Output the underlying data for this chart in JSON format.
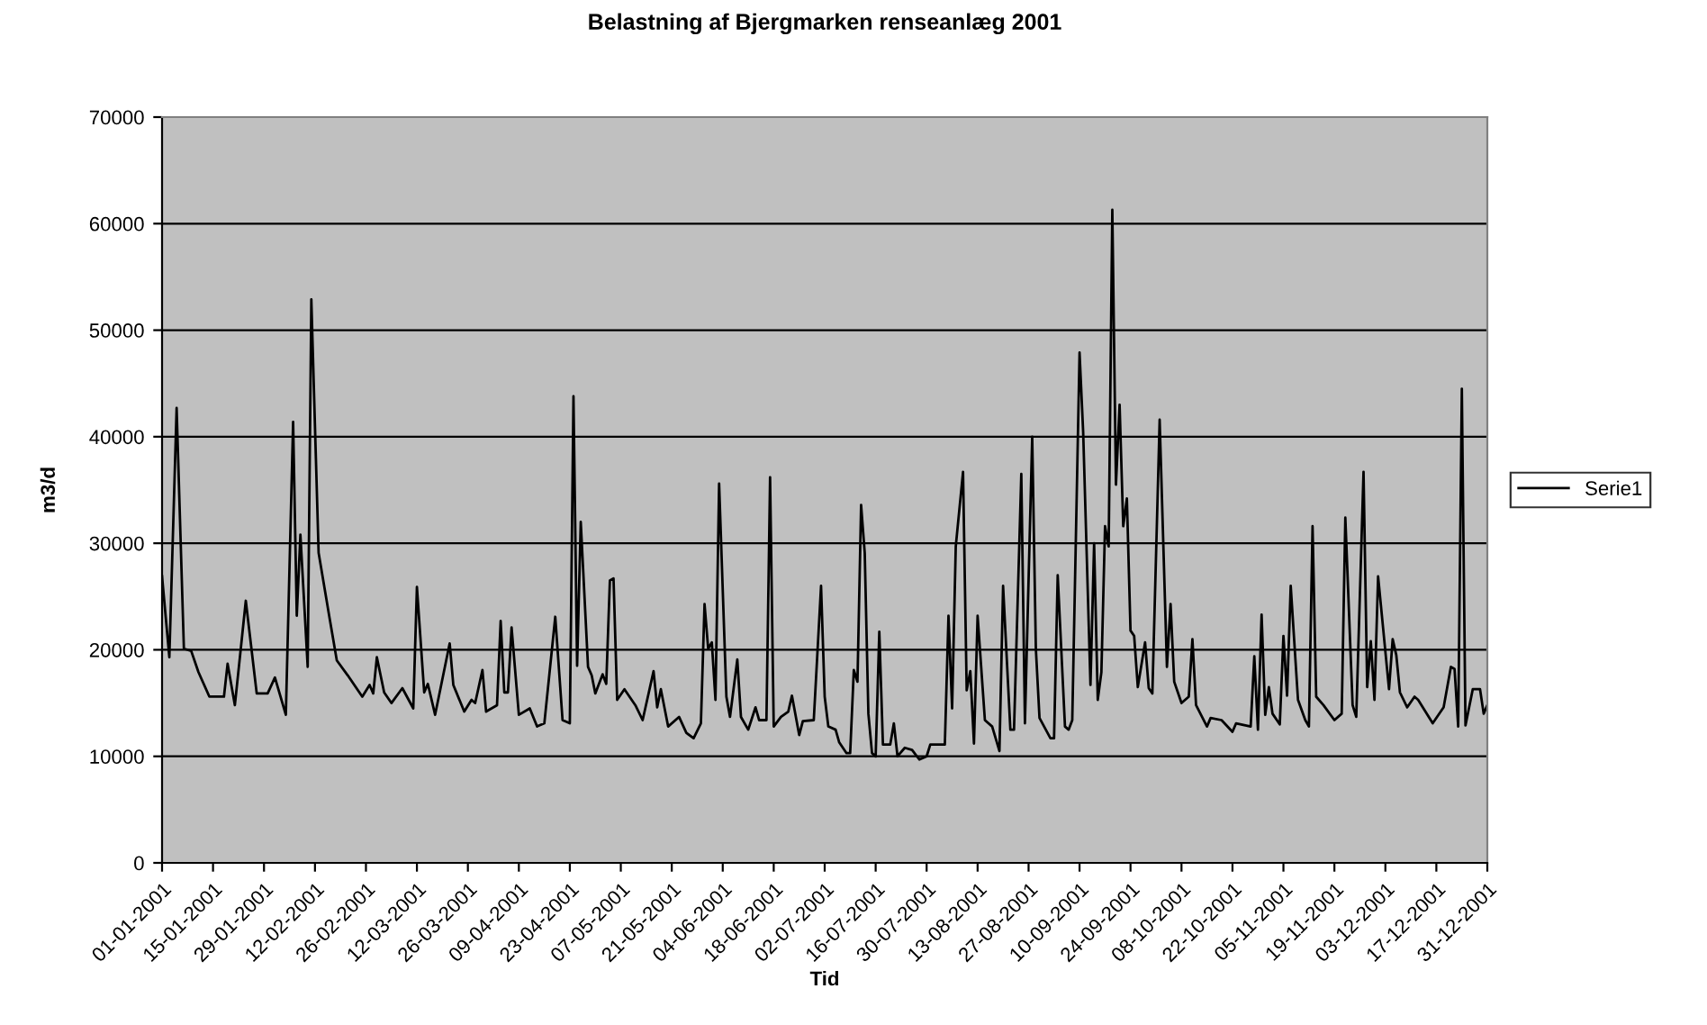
{
  "chart_data": {
    "type": "line",
    "title": "Belastning af Bjergmarken renseanlæg 2001",
    "xlabel": "Tid",
    "ylabel": "m3/d",
    "x": [
      "2001-01-01",
      "2001-01-03",
      "2001-01-05",
      "2001-01-07",
      "2001-01-09",
      "2001-01-11",
      "2001-01-14",
      "2001-01-18",
      "2001-01-19",
      "2001-01-21",
      "2001-01-24",
      "2001-01-27",
      "2001-01-30",
      "2001-02-01",
      "2001-02-04",
      "2001-02-06",
      "2001-02-07",
      "2001-02-08",
      "2001-02-10",
      "2001-02-11",
      "2001-02-13",
      "2001-02-16",
      "2001-02-18",
      "2001-02-21",
      "2001-02-25",
      "2001-02-27",
      "2001-02-28",
      "2001-03-01",
      "2001-03-03",
      "2001-03-05",
      "2001-03-08",
      "2001-03-11",
      "2001-03-12",
      "2001-03-14",
      "2001-03-15",
      "2001-03-17",
      "2001-03-21",
      "2001-03-22",
      "2001-03-25",
      "2001-03-27",
      "2001-03-28",
      "2001-03-30",
      "2001-03-31",
      "2001-04-03",
      "2001-04-04",
      "2001-04-05",
      "2001-04-06",
      "2001-04-07",
      "2001-04-09",
      "2001-04-12",
      "2001-04-14",
      "2001-04-16",
      "2001-04-19",
      "2001-04-21",
      "2001-04-23",
      "2001-04-24",
      "2001-04-25",
      "2001-04-26",
      "2001-04-28",
      "2001-04-29",
      "2001-04-30",
      "2001-05-02",
      "2001-05-03",
      "2001-05-04",
      "2001-05-05",
      "2001-05-06",
      "2001-05-08",
      "2001-05-11",
      "2001-05-13",
      "2001-05-16",
      "2001-05-17",
      "2001-05-18",
      "2001-05-20",
      "2001-05-23",
      "2001-05-25",
      "2001-05-27",
      "2001-05-29",
      "2001-05-30",
      "2001-05-31",
      "2001-06-01",
      "2001-06-02",
      "2001-06-03",
      "2001-06-05",
      "2001-06-06",
      "2001-06-08",
      "2001-06-09",
      "2001-06-11",
      "2001-06-13",
      "2001-06-14",
      "2001-06-16",
      "2001-06-17",
      "2001-06-18",
      "2001-06-20",
      "2001-06-22",
      "2001-06-23",
      "2001-06-25",
      "2001-06-26",
      "2001-06-29",
      "2001-07-01",
      "2001-07-02",
      "2001-07-03",
      "2001-07-05",
      "2001-07-06",
      "2001-07-08",
      "2001-07-09",
      "2001-07-10",
      "2001-07-11",
      "2001-07-12",
      "2001-07-13",
      "2001-07-14",
      "2001-07-15",
      "2001-07-16",
      "2001-07-17",
      "2001-07-18",
      "2001-07-20",
      "2001-07-21",
      "2001-07-22",
      "2001-07-24",
      "2001-07-26",
      "2001-07-28",
      "2001-07-30",
      "2001-07-31",
      "2001-08-03",
      "2001-08-04",
      "2001-08-05",
      "2001-08-06",
      "2001-08-07",
      "2001-08-09",
      "2001-08-10",
      "2001-08-11",
      "2001-08-12",
      "2001-08-13",
      "2001-08-15",
      "2001-08-17",
      "2001-08-19",
      "2001-08-20",
      "2001-08-22",
      "2001-08-23",
      "2001-08-25",
      "2001-08-26",
      "2001-08-28",
      "2001-08-29",
      "2001-08-30",
      "2001-09-02",
      "2001-09-03",
      "2001-09-04",
      "2001-09-06",
      "2001-09-07",
      "2001-09-08",
      "2001-09-10",
      "2001-09-11",
      "2001-09-13",
      "2001-09-14",
      "2001-09-15",
      "2001-09-16",
      "2001-09-17",
      "2001-09-18",
      "2001-09-19",
      "2001-09-20",
      "2001-09-21",
      "2001-09-22",
      "2001-09-23",
      "2001-09-24",
      "2001-09-25",
      "2001-09-26",
      "2001-09-28",
      "2001-09-29",
      "2001-09-30",
      "2001-10-02",
      "2001-10-04",
      "2001-10-05",
      "2001-10-06",
      "2001-10-08",
      "2001-10-10",
      "2001-10-11",
      "2001-10-12",
      "2001-10-15",
      "2001-10-16",
      "2001-10-19",
      "2001-10-22",
      "2001-10-23",
      "2001-10-27",
      "2001-10-28",
      "2001-10-29",
      "2001-10-30",
      "2001-10-31",
      "2001-11-01",
      "2001-11-02",
      "2001-11-04",
      "2001-11-05",
      "2001-11-06",
      "2001-11-07",
      "2001-11-09",
      "2001-11-11",
      "2001-11-12",
      "2001-11-13",
      "2001-11-14",
      "2001-11-16",
      "2001-11-19",
      "2001-11-21",
      "2001-11-22",
      "2001-11-24",
      "2001-11-25",
      "2001-11-27",
      "2001-11-28",
      "2001-11-29",
      "2001-11-30",
      "2001-12-01",
      "2001-12-04",
      "2001-12-05",
      "2001-12-06",
      "2001-12-07",
      "2001-12-09",
      "2001-12-11",
      "2001-12-12",
      "2001-12-14",
      "2001-12-16",
      "2001-12-19",
      "2001-12-21",
      "2001-12-22",
      "2001-12-23",
      "2001-12-24",
      "2001-12-25",
      "2001-12-27",
      "2001-12-29",
      "2001-12-30",
      "2001-12-31"
    ],
    "series": [
      {
        "name": "Serie1",
        "color": "#000000",
        "values": [
          26900,
          19300,
          42700,
          20100,
          19900,
          17900,
          15600,
          15600,
          18700,
          14800,
          24600,
          15900,
          15900,
          17400,
          13900,
          41400,
          23200,
          30800,
          18400,
          52900,
          29100,
          23000,
          19000,
          17600,
          15600,
          16700,
          15900,
          19300,
          16000,
          15000,
          16400,
          14500,
          25900,
          16000,
          16800,
          13900,
          20600,
          16700,
          14200,
          15300,
          15000,
          18100,
          14200,
          14800,
          22700,
          16000,
          16000,
          22100,
          13900,
          14500,
          12800,
          13100,
          23100,
          13400,
          13100,
          43800,
          18500,
          32000,
          18400,
          17600,
          15900,
          17700,
          16800,
          26500,
          26700,
          15300,
          16300,
          14800,
          13400,
          18000,
          14600,
          16300,
          12800,
          13700,
          12200,
          11700,
          13100,
          24300,
          20100,
          20700,
          15300,
          35600,
          15600,
          13700,
          19100,
          13700,
          12500,
          14600,
          13400,
          13400,
          36200,
          12800,
          13700,
          14200,
          15700,
          12000,
          13300,
          13400,
          26000,
          15600,
          12800,
          12500,
          11300,
          10300,
          10300,
          18100,
          17000,
          33600,
          29100,
          14000,
          10300,
          10000,
          21700,
          11100,
          11100,
          13100,
          10000,
          10800,
          10600,
          9700,
          10000,
          11100,
          11100,
          11100,
          23200,
          14500,
          29700,
          36700,
          16200,
          18000,
          11200,
          23200,
          13400,
          12800,
          10500,
          26000,
          12500,
          12500,
          36500,
          13100,
          40000,
          20100,
          13600,
          11700,
          11700,
          27000,
          12800,
          12500,
          13400,
          47900,
          40400,
          16700,
          30000,
          15300,
          17900,
          31600,
          29700,
          61300,
          35500,
          43000,
          31600,
          34200,
          21800,
          21300,
          16500,
          20700,
          16400,
          15900,
          41600,
          18400,
          24300,
          17000,
          15000,
          15600,
          21000,
          14800,
          12800,
          13600,
          13400,
          12300,
          13100,
          12800,
          19400,
          12500,
          23300,
          13900,
          16500,
          14000,
          13000,
          21300,
          15700,
          26000,
          15300,
          13400,
          12800,
          31600,
          15600,
          14800,
          13400,
          14000,
          32400,
          14800,
          13700,
          36700,
          16500,
          20800,
          15300,
          26900,
          16300,
          21000,
          19500,
          16000,
          14600,
          15600,
          15300,
          14200,
          13100,
          14600,
          18400,
          18200,
          12800,
          44500,
          12900,
          16300,
          16300,
          14000,
          14800
        ]
      }
    ],
    "xlim": [
      "2001-01-01",
      "2001-12-31"
    ],
    "xticks": [
      {
        "value": "2001-01-01",
        "label": "01-01-2001"
      },
      {
        "value": "2001-01-15",
        "label": "15-01-2001"
      },
      {
        "value": "2001-01-29",
        "label": "29-01-2001"
      },
      {
        "value": "2001-02-12",
        "label": "12-02-2001"
      },
      {
        "value": "2001-02-26",
        "label": "26-02-2001"
      },
      {
        "value": "2001-03-12",
        "label": "12-03-2001"
      },
      {
        "value": "2001-03-26",
        "label": "26-03-2001"
      },
      {
        "value": "2001-04-09",
        "label": "09-04-2001"
      },
      {
        "value": "2001-04-23",
        "label": "23-04-2001"
      },
      {
        "value": "2001-05-07",
        "label": "07-05-2001"
      },
      {
        "value": "2001-05-21",
        "label": "21-05-2001"
      },
      {
        "value": "2001-06-04",
        "label": "04-06-2001"
      },
      {
        "value": "2001-06-18",
        "label": "18-06-2001"
      },
      {
        "value": "2001-07-02",
        "label": "02-07-2001"
      },
      {
        "value": "2001-07-16",
        "label": "16-07-2001"
      },
      {
        "value": "2001-07-30",
        "label": "30-07-2001"
      },
      {
        "value": "2001-08-13",
        "label": "13-08-2001"
      },
      {
        "value": "2001-08-27",
        "label": "27-08-2001"
      },
      {
        "value": "2001-09-10",
        "label": "10-09-2001"
      },
      {
        "value": "2001-09-24",
        "label": "24-09-2001"
      },
      {
        "value": "2001-10-08",
        "label": "08-10-2001"
      },
      {
        "value": "2001-10-22",
        "label": "22-10-2001"
      },
      {
        "value": "2001-11-05",
        "label": "05-11-2001"
      },
      {
        "value": "2001-11-19",
        "label": "19-11-2001"
      },
      {
        "value": "2001-12-03",
        "label": "03-12-2001"
      },
      {
        "value": "2001-12-17",
        "label": "17-12-2001"
      },
      {
        "value": "2001-12-31",
        "label": "31-12-2001"
      }
    ],
    "ylim": [
      0,
      70000
    ],
    "yticks": [
      0,
      10000,
      20000,
      30000,
      40000,
      50000,
      60000,
      70000
    ],
    "grid": "y",
    "legend": "right",
    "marker": "none",
    "line_style": "solid"
  }
}
